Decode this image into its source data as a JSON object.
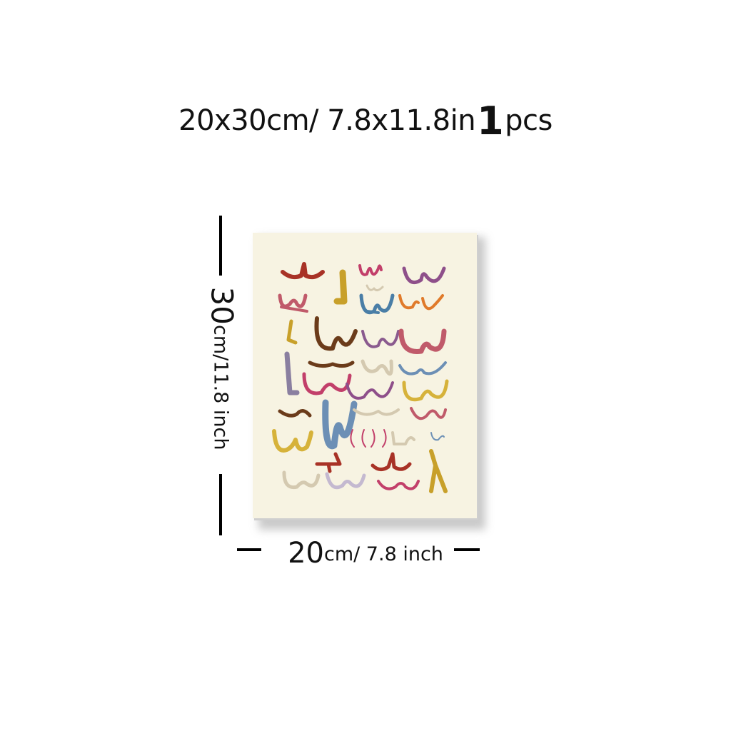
{
  "title": {
    "size": "20x30cm/ 7.8x11.8in",
    "qty_num": "1",
    "qty_unit": "pcs"
  },
  "dimensions": {
    "height_num": "30",
    "height_unit": "cm/11.8 inch",
    "width_num": "20",
    "width_unit": "cm/ 7.8 inch"
  },
  "poster": {
    "background": "#f7f3e2",
    "glyph_colors": [
      "#a83226",
      "#c8a02a",
      "#8e4f8a",
      "#c23f6a",
      "#4a7ea6",
      "#e07a2a",
      "#6b3b1a",
      "#8a5a8e",
      "#d4c9b0",
      "#c05a6a",
      "#6c8fb5",
      "#d6b23a",
      "#b34a86"
    ]
  }
}
